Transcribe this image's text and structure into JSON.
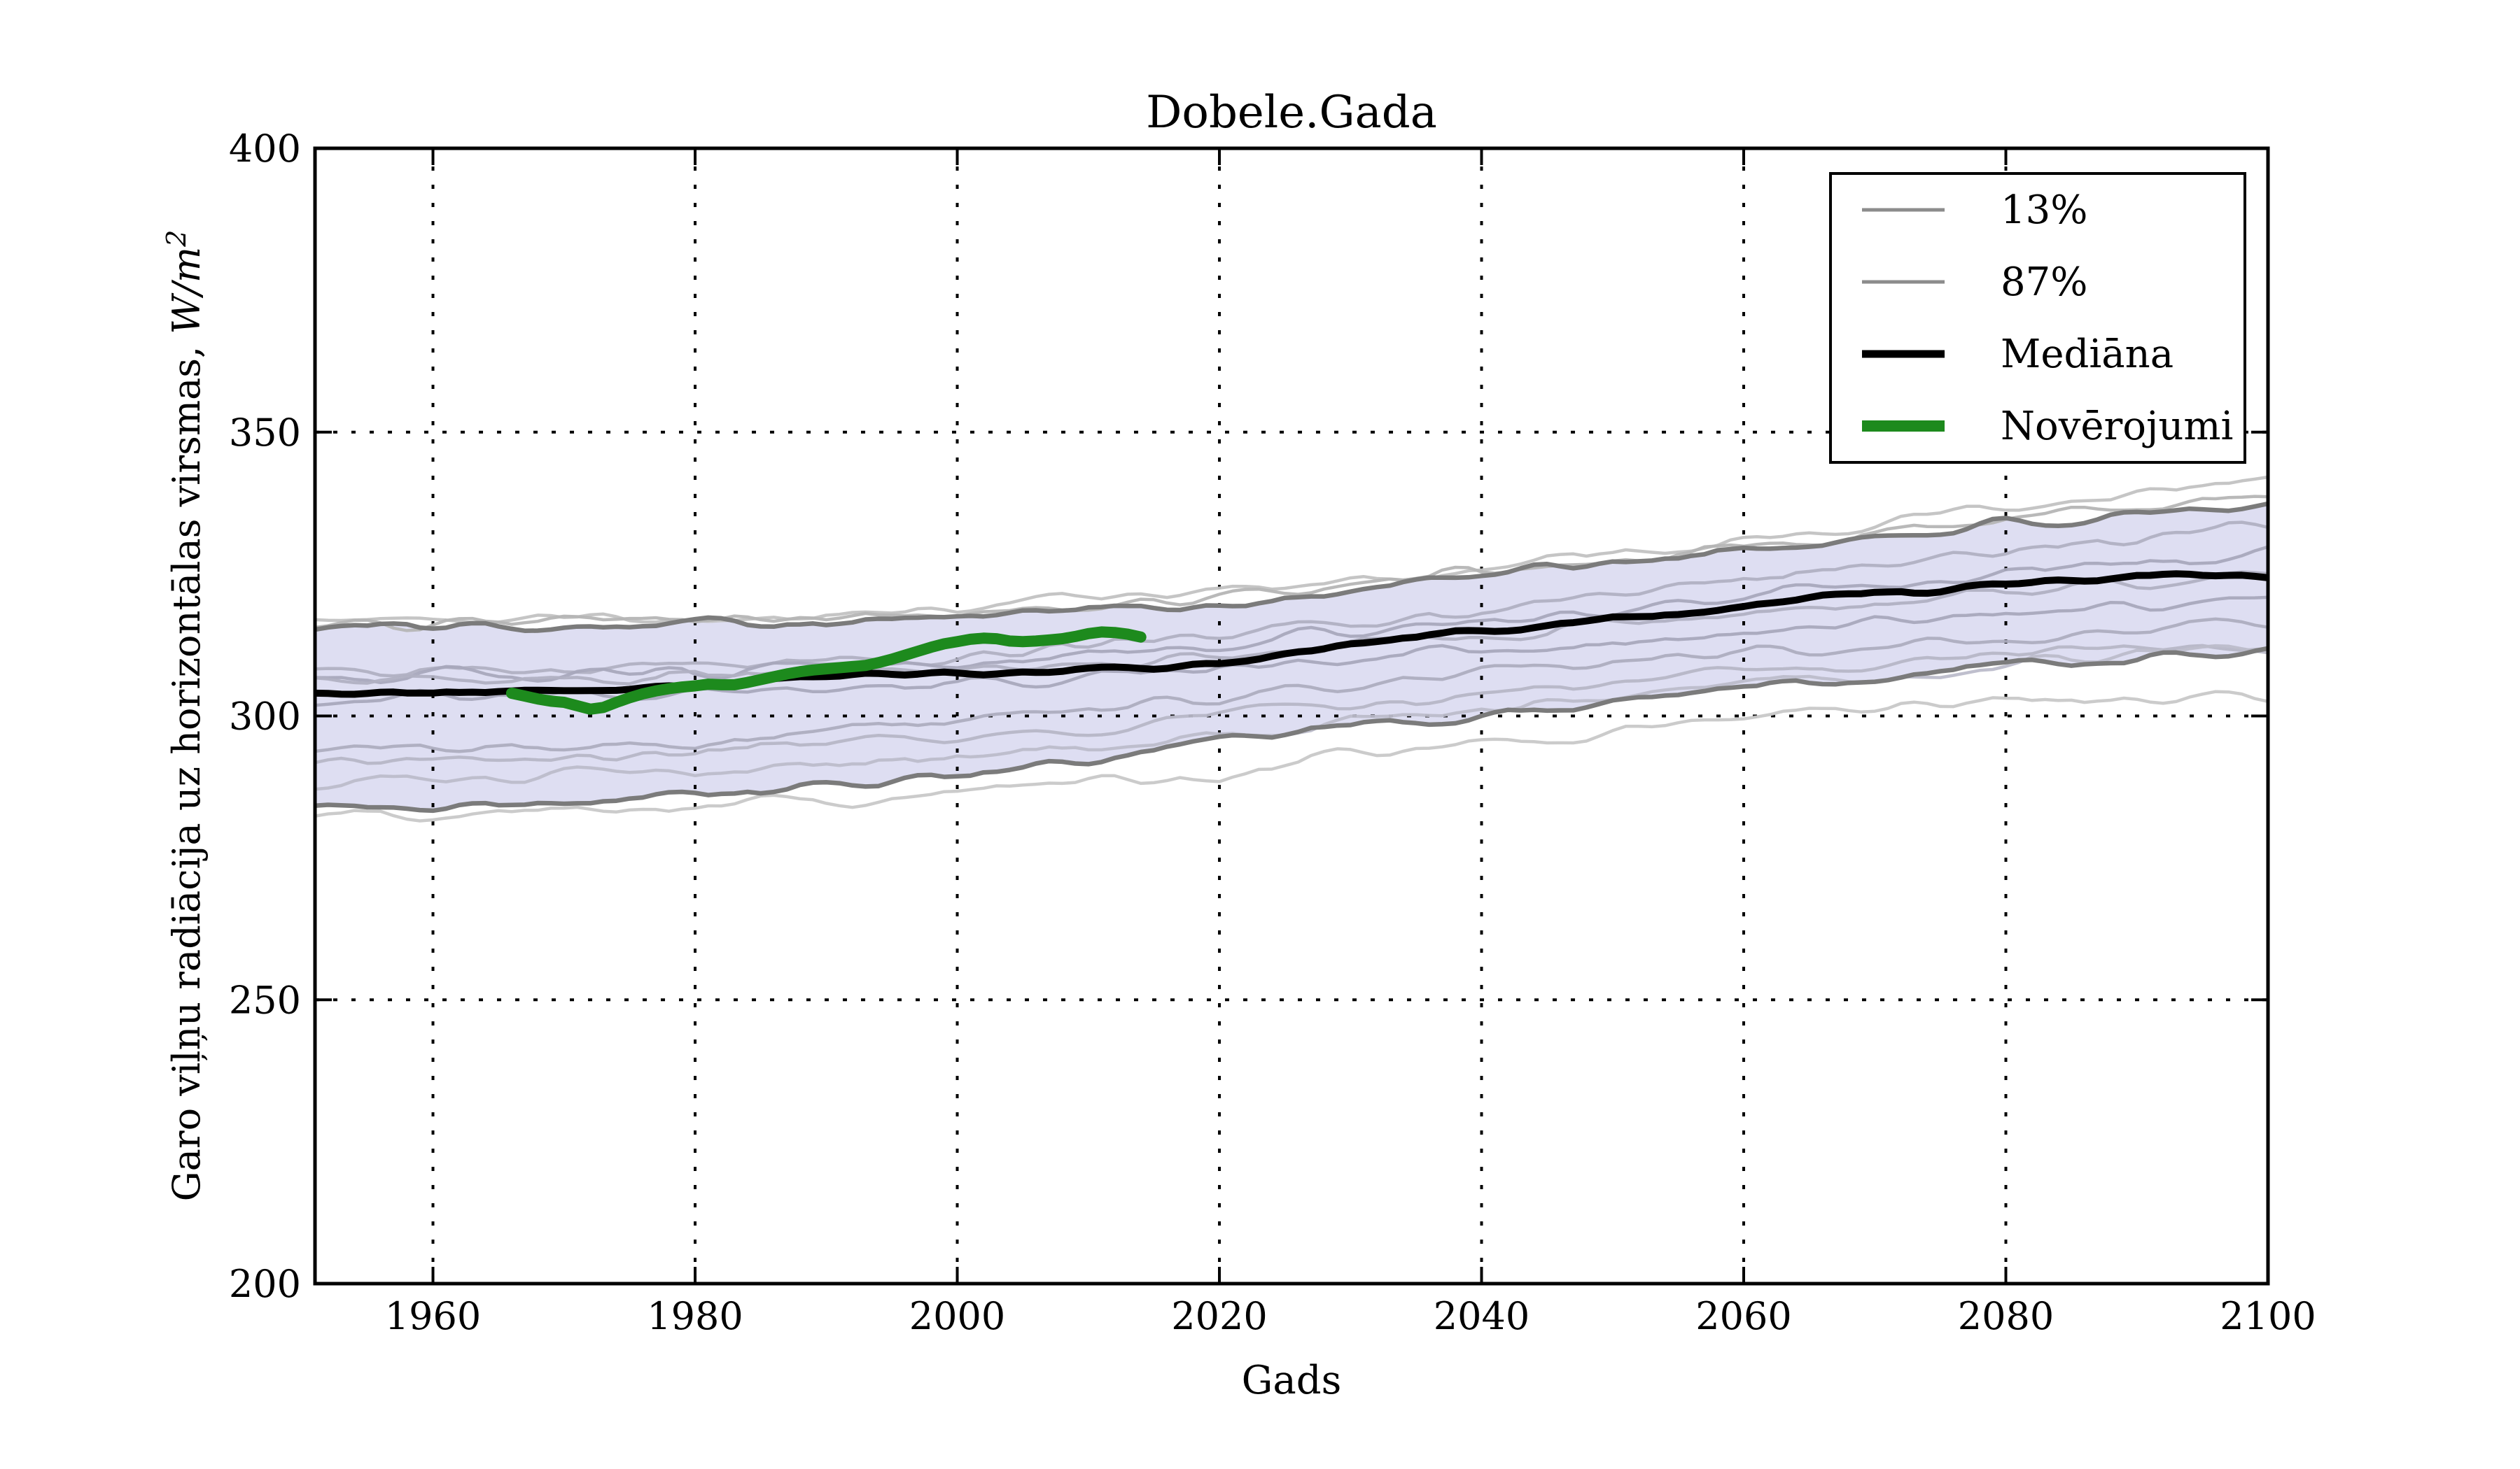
{
  "title": "Dobele.Gada",
  "xlabel": "Gads",
  "ylabel": {
    "prefix": "Garo viļņu radiācija uz horizontālas virsmas, ",
    "math": "W/m",
    "sup": "2"
  },
  "axes": {
    "xlim": [
      1951,
      2100
    ],
    "ylim": [
      200,
      400
    ],
    "xticks": [
      1960,
      1980,
      2000,
      2020,
      2040,
      2060,
      2080,
      2100
    ],
    "yticks": [
      200,
      250,
      300,
      350,
      400
    ],
    "grid_x": [
      1960,
      1980,
      2000,
      2020,
      2040,
      2060,
      2080
    ],
    "grid_y": [
      250,
      300,
      350
    ]
  },
  "legend": {
    "items": [
      {
        "label": "13%",
        "color": "#8c8c8c",
        "stroke_width": 5
      },
      {
        "label": "87%",
        "color": "#8c8c8c",
        "stroke_width": 5
      },
      {
        "label": "Mediāna",
        "color": "#000000",
        "stroke_width": 11
      },
      {
        "label": "Novērojumi",
        "color": "#1d8a1d",
        "stroke_width": 16
      }
    ]
  },
  "colors": {
    "background": "#ffffff",
    "band_fill": "#dedef2",
    "band_edge": "#7b7b7b",
    "median": "#000000",
    "observations": "#1d8a1d",
    "grid": "#000000",
    "spine": "#000000"
  },
  "chart_data": {
    "type": "line",
    "title": "Dobele.Gada",
    "xlabel": "Gads",
    "ylabel": "Garo viļņu radiācija uz horizontālas virsmas, W/m2",
    "xlim": [
      1951,
      2100
    ],
    "ylim": [
      200,
      400
    ],
    "grid": "dotted",
    "legend_position": "upper right",
    "band": {
      "name": "13%-87% percentile band",
      "years": [
        1951,
        1960,
        1970,
        1980,
        1990,
        2000,
        2010,
        2020,
        2030,
        2040,
        2050,
        2060,
        2070,
        2080,
        2090,
        2100
      ],
      "upper": [
        315.6,
        315.9,
        316.2,
        316.5,
        317.0,
        317.5,
        318.8,
        319.7,
        321.4,
        325.2,
        327.0,
        329.1,
        331.5,
        333.9,
        334.8,
        336.4
      ],
      "lower": [
        284.5,
        284.2,
        284.8,
        286.0,
        287.5,
        289.3,
        291.5,
        295.4,
        297.9,
        300.2,
        302.6,
        305.5,
        307.0,
        308.8,
        309.5,
        311.7
      ]
    },
    "median": {
      "name": "Mediāna",
      "years": [
        1951,
        1955,
        1960,
        1965,
        1970,
        1975,
        1980,
        1985,
        1990,
        1995,
        2000,
        2005,
        2010,
        2015,
        2020,
        2025,
        2030,
        2035,
        2040,
        2045,
        2050,
        2055,
        2060,
        2065,
        2070,
        2075,
        2080,
        2085,
        2090,
        2095,
        2100
      ],
      "values": [
        304.0,
        304.1,
        304.2,
        304.2,
        304.3,
        304.8,
        305.3,
        306.2,
        306.8,
        307.2,
        307.4,
        307.6,
        307.9,
        308.6,
        309.4,
        311.0,
        312.7,
        313.8,
        314.9,
        316.3,
        317.5,
        318.2,
        319.2,
        320.4,
        321.5,
        322.3,
        323.2,
        323.8,
        324.8,
        324.6,
        324.6
      ]
    },
    "observations": {
      "name": "Novērojumi",
      "start_year": 1966,
      "end_year": 2014,
      "values": [
        304.0,
        303.5,
        303.0,
        302.6,
        302.4,
        301.8,
        301.2,
        301.5,
        302.4,
        303.2,
        303.9,
        304.4,
        304.8,
        305.1,
        305.3,
        305.6,
        305.5,
        305.5,
        305.9,
        306.4,
        306.9,
        307.4,
        307.8,
        308.1,
        308.3,
        308.5,
        308.7,
        308.9,
        309.4,
        310.0,
        310.7,
        311.4,
        312.1,
        312.7,
        313.1,
        313.5,
        313.7,
        313.6,
        313.2,
        313.1,
        313.2,
        313.4,
        313.6,
        314.0,
        314.5,
        314.8,
        314.7,
        314.4,
        313.9
      ]
    },
    "ensemble_traces": [
      {
        "years": [
          1951,
          1960,
          1980,
          2000,
          2020,
          2040,
          2060,
          2080,
          2100
        ],
        "values": [
          316.8,
          317.0,
          317.4,
          318.8,
          321.6,
          326.0,
          331.0,
          336.9,
          341.5
        ],
        "color": "#c2c2c2"
      },
      {
        "years": [
          1951,
          1960,
          1980,
          2000,
          2020,
          2040,
          2060,
          2080,
          2100
        ],
        "values": [
          315.9,
          316.1,
          316.7,
          318.0,
          320.7,
          325.3,
          329.8,
          334.3,
          339.0
        ],
        "color": "#b5b5b5"
      },
      {
        "years": [
          1951,
          1960,
          1980,
          2000,
          2020,
          2040,
          2060,
          2080,
          2100
        ],
        "values": [
          307.6,
          307.9,
          308.8,
          310.8,
          314.5,
          318.8,
          323.8,
          328.8,
          333.2
        ],
        "color": "#b0b0c2"
      },
      {
        "years": [
          1951,
          1960,
          1980,
          2000,
          2020,
          2040,
          2060,
          2080,
          2100
        ],
        "values": [
          306.6,
          306.9,
          307.6,
          309.5,
          312.5,
          316.8,
          320.8,
          325.0,
          328.8
        ],
        "color": "#a8a8bc"
      },
      {
        "years": [
          1951,
          1960,
          1980,
          2000,
          2020,
          2040,
          2060,
          2080,
          2100
        ],
        "values": [
          305.8,
          306.0,
          306.8,
          308.2,
          310.5,
          314.0,
          317.8,
          321.5,
          325.8
        ],
        "color": "#b0b0c2"
      },
      {
        "years": [
          1951,
          1960,
          1980,
          2000,
          2020,
          2040,
          2060,
          2080,
          2100
        ],
        "values": [
          303.0,
          303.2,
          304.0,
          305.5,
          308.0,
          311.5,
          315.0,
          318.0,
          320.8
        ],
        "color": "#a8a8bc"
      },
      {
        "years": [
          1951,
          1960,
          1980,
          2000,
          2020,
          2040,
          2060,
          2080,
          2100
        ],
        "values": [
          293.6,
          293.9,
          295.2,
          299.5,
          303.5,
          307.5,
          311.0,
          313.5,
          316.2
        ],
        "color": "#adadbf"
      },
      {
        "years": [
          1951,
          1960,
          1980,
          2000,
          2020,
          2040,
          2060,
          2080,
          2100
        ],
        "values": [
          291.8,
          292.1,
          293.3,
          296.5,
          300.0,
          304.0,
          307.5,
          310.5,
          313.2
        ],
        "color": "#b6b6c6"
      },
      {
        "years": [
          1951,
          1960,
          1980,
          2000,
          2020,
          2040,
          2060,
          2080,
          2100
        ],
        "values": [
          288.6,
          288.9,
          289.8,
          293.0,
          296.3,
          301.2,
          305.8,
          308.9,
          312.6
        ],
        "color": "#bcbcca"
      },
      {
        "years": [
          1951,
          1960,
          1980,
          2000,
          2020,
          2040,
          2060,
          2080,
          2100
        ],
        "values": [
          283.2,
          283.4,
          284.0,
          286.8,
          290.2,
          295.1,
          300.1,
          302.4,
          303.7
        ],
        "color": "#c8c8c8"
      }
    ]
  }
}
